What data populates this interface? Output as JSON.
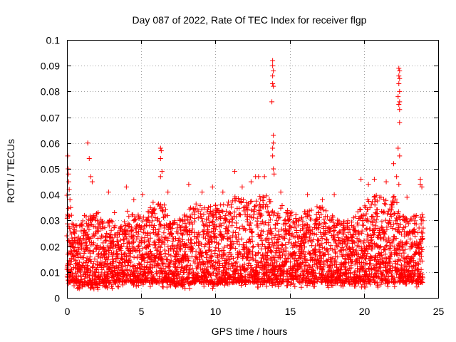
{
  "chart_data": {
    "type": "scatter",
    "title": "Day 087 of 2022, Rate Of TEC Index for receiver flgp",
    "xlabel": "GPS time / hours",
    "ylabel": "ROTI / TECUs",
    "xlim": [
      0,
      25
    ],
    "ylim": [
      0,
      0.1
    ],
    "x_ticks": [
      0,
      5,
      10,
      15,
      20,
      25
    ],
    "y_ticks": [
      0,
      0.01,
      0.02,
      0.03,
      0.04,
      0.05,
      0.06,
      0.07,
      0.08,
      0.09,
      0.1
    ],
    "x_tick_labels": [
      "0",
      "5",
      "10",
      "15",
      "20",
      "25"
    ],
    "y_tick_labels": [
      "0",
      "0.01",
      "0.02",
      "0.03",
      "0.04",
      "0.05",
      "0.06",
      "0.07",
      "0.08",
      "0.09",
      "0.1"
    ],
    "grid": true,
    "marker": "+",
    "marker_color": "#ff0000",
    "series": [
      {
        "name": "ROTI",
        "points": [
          [
            0.05,
            0.055
          ],
          [
            0.08,
            0.05
          ],
          [
            0.1,
            0.048
          ],
          [
            0.12,
            0.045
          ],
          [
            0.15,
            0.042
          ],
          [
            0.2,
            0.038
          ],
          [
            0.25,
            0.035
          ],
          [
            0.3,
            0.032
          ],
          [
            1.4,
            0.06
          ],
          [
            1.5,
            0.054
          ],
          [
            1.6,
            0.047
          ],
          [
            1.7,
            0.045
          ],
          [
            2.1,
            0.033
          ],
          [
            2.8,
            0.041
          ],
          [
            3.2,
            0.033
          ],
          [
            4.0,
            0.043
          ],
          [
            4.5,
            0.038
          ],
          [
            5.1,
            0.04
          ],
          [
            5.8,
            0.037
          ],
          [
            6.3,
            0.058
          ],
          [
            6.35,
            0.057
          ],
          [
            6.3,
            0.054
          ],
          [
            6.4,
            0.049
          ],
          [
            6.3,
            0.047
          ],
          [
            6.8,
            0.041
          ],
          [
            8.2,
            0.044
          ],
          [
            9.1,
            0.041
          ],
          [
            9.8,
            0.043
          ],
          [
            10.5,
            0.041
          ],
          [
            11.3,
            0.049
          ],
          [
            11.8,
            0.043
          ],
          [
            12.4,
            0.045
          ],
          [
            12.7,
            0.047
          ],
          [
            12.9,
            0.047
          ],
          [
            13.3,
            0.047
          ],
          [
            13.85,
            0.092
          ],
          [
            13.85,
            0.09
          ],
          [
            13.9,
            0.088
          ],
          [
            13.85,
            0.086
          ],
          [
            13.85,
            0.083
          ],
          [
            13.9,
            0.082
          ],
          [
            13.8,
            0.076
          ],
          [
            13.9,
            0.063
          ],
          [
            13.9,
            0.06
          ],
          [
            13.85,
            0.058
          ],
          [
            13.85,
            0.055
          ],
          [
            13.9,
            0.05
          ],
          [
            13.95,
            0.048
          ],
          [
            14.4,
            0.041
          ],
          [
            16.2,
            0.04
          ],
          [
            17.2,
            0.038
          ],
          [
            18.0,
            0.04
          ],
          [
            19.8,
            0.046
          ],
          [
            20.3,
            0.044
          ],
          [
            20.7,
            0.046
          ],
          [
            21.5,
            0.045
          ],
          [
            22.0,
            0.052
          ],
          [
            22.2,
            0.047
          ],
          [
            22.35,
            0.089
          ],
          [
            22.4,
            0.088
          ],
          [
            22.35,
            0.086
          ],
          [
            22.4,
            0.085
          ],
          [
            22.35,
            0.083
          ],
          [
            22.4,
            0.08
          ],
          [
            22.3,
            0.078
          ],
          [
            22.4,
            0.076
          ],
          [
            22.35,
            0.075
          ],
          [
            22.4,
            0.073
          ],
          [
            22.4,
            0.068
          ],
          [
            22.3,
            0.058
          ],
          [
            22.4,
            0.055
          ],
          [
            22.35,
            0.044
          ],
          [
            22.9,
            0.039
          ],
          [
            23.8,
            0.046
          ],
          [
            23.8,
            0.044
          ],
          [
            23.9,
            0.043
          ]
        ],
        "density_profile_note": "Dense band of many points between about 0.003 and 0.035 across 0-24 h",
        "envelope": {
          "hours": [
            0,
            0.5,
            1,
            1.5,
            2,
            2.5,
            3,
            3.5,
            4,
            4.5,
            5,
            5.5,
            6,
            6.5,
            7,
            7.5,
            8,
            8.5,
            9,
            9.5,
            10,
            10.5,
            11,
            11.5,
            12,
            12.5,
            13,
            13.5,
            14,
            14.5,
            15,
            15.5,
            16,
            16.5,
            17,
            17.5,
            18,
            18.5,
            19,
            19.5,
            20,
            20.5,
            21,
            21.5,
            22,
            22.5,
            23,
            23.5,
            24
          ],
          "upper": [
            0.04,
            0.028,
            0.03,
            0.036,
            0.034,
            0.03,
            0.03,
            0.027,
            0.034,
            0.032,
            0.033,
            0.035,
            0.036,
            0.038,
            0.03,
            0.03,
            0.034,
            0.036,
            0.037,
            0.036,
            0.036,
            0.036,
            0.038,
            0.04,
            0.038,
            0.038,
            0.04,
            0.04,
            0.035,
            0.036,
            0.034,
            0.033,
            0.034,
            0.034,
            0.036,
            0.034,
            0.032,
            0.03,
            0.03,
            0.034,
            0.036,
            0.04,
            0.04,
            0.038,
            0.04,
            0.034,
            0.03,
            0.034,
            0.034
          ],
          "lower": [
            0.006,
            0.006,
            0.005,
            0.005,
            0.005,
            0.006,
            0.005,
            0.006,
            0.006,
            0.006,
            0.006,
            0.006,
            0.006,
            0.006,
            0.006,
            0.005,
            0.005,
            0.006,
            0.006,
            0.006,
            0.005,
            0.006,
            0.006,
            0.006,
            0.006,
            0.006,
            0.006,
            0.006,
            0.006,
            0.006,
            0.006,
            0.006,
            0.006,
            0.006,
            0.006,
            0.006,
            0.006,
            0.006,
            0.006,
            0.006,
            0.006,
            0.006,
            0.006,
            0.006,
            0.006,
            0.006,
            0.006,
            0.006,
            0.006
          ],
          "step_hours": 0.015
        }
      }
    ]
  }
}
